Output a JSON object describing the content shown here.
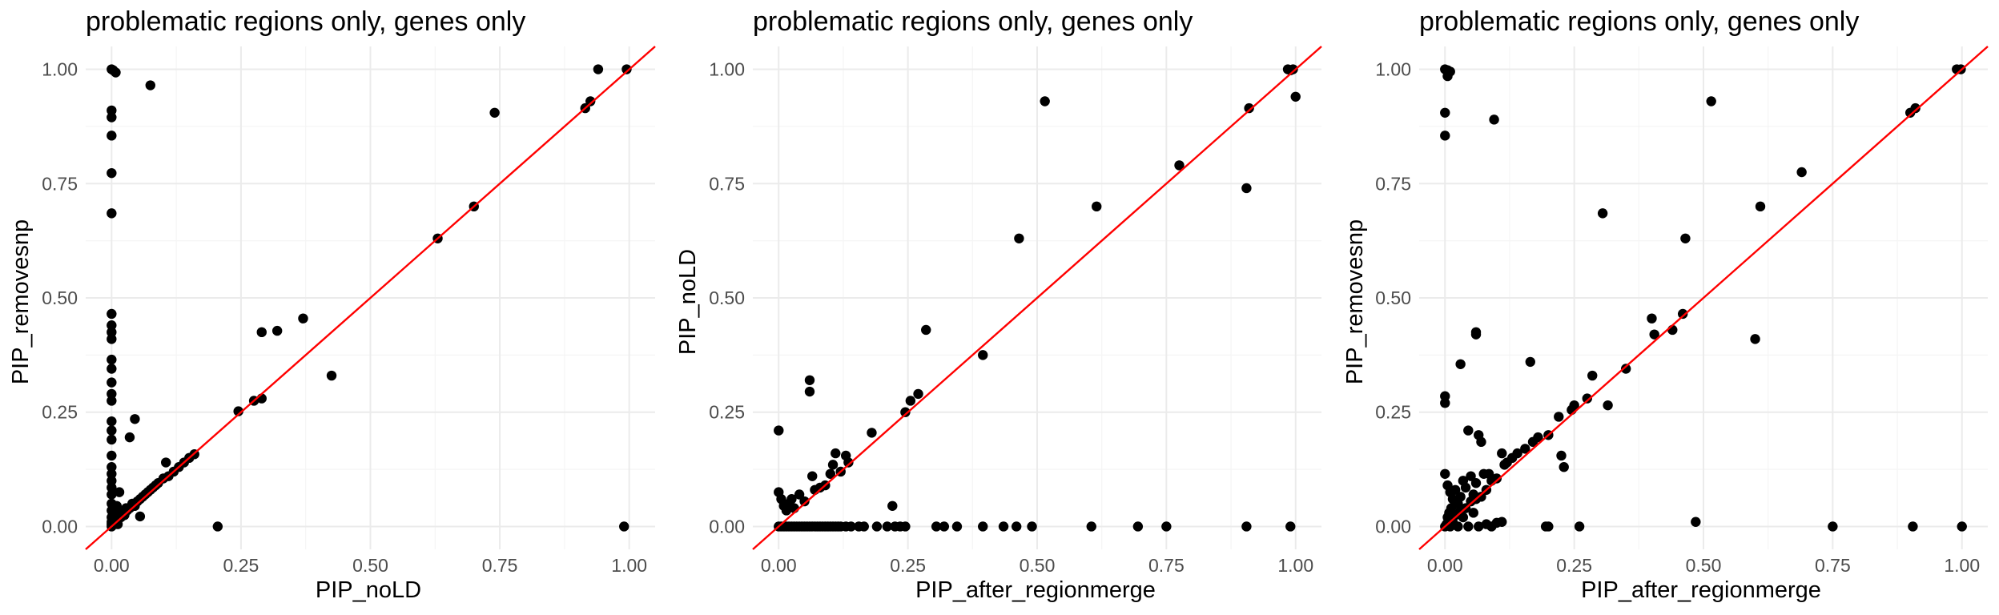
{
  "chart_data": [
    {
      "type": "scatter",
      "title": "problematic regions only, genes only",
      "xlabel": "PIP_noLD",
      "ylabel": "PIP_removesnp",
      "xlim": [
        -0.05,
        1.05
      ],
      "ylim": [
        -0.05,
        1.05
      ],
      "x_ticks": [
        "0.00",
        "0.25",
        "0.50",
        "0.75",
        "1.00"
      ],
      "y_ticks": [
        "0.00",
        "0.25",
        "0.50",
        "0.75",
        "1.00"
      ],
      "reference_line": {
        "slope": 1,
        "intercept": 0,
        "color": "#ff0000"
      },
      "points": [
        [
          0.0,
          1.0
        ],
        [
          0.003,
          0.998
        ],
        [
          0.008,
          0.993
        ],
        [
          0.075,
          0.965
        ],
        [
          0.0,
          0.91
        ],
        [
          0.0,
          0.895
        ],
        [
          0.0,
          0.855
        ],
        [
          0.0,
          0.773
        ],
        [
          0.0,
          0.685
        ],
        [
          0.0,
          0.465
        ],
        [
          0.0,
          0.44
        ],
        [
          0.0,
          0.425
        ],
        [
          0.0,
          0.41
        ],
        [
          0.0,
          0.365
        ],
        [
          0.0,
          0.345
        ],
        [
          0.0,
          0.315
        ],
        [
          0.0,
          0.29
        ],
        [
          0.0,
          0.275
        ],
        [
          0.0,
          0.23
        ],
        [
          0.0,
          0.21
        ],
        [
          0.0,
          0.19
        ],
        [
          0.0,
          0.155
        ],
        [
          0.0,
          0.13
        ],
        [
          0.0,
          0.115
        ],
        [
          0.0,
          0.1
        ],
        [
          0.0,
          0.085
        ],
        [
          0.0,
          0.07
        ],
        [
          0.0,
          0.05
        ],
        [
          0.0,
          0.035
        ],
        [
          0.0,
          0.02
        ],
        [
          0.0,
          0.01
        ],
        [
          0.0,
          0.005
        ],
        [
          0.0,
          0.0
        ],
        [
          0.005,
          0.03
        ],
        [
          0.008,
          0.015
        ],
        [
          0.01,
          0.045
        ],
        [
          0.012,
          0.005
        ],
        [
          0.015,
          0.075
        ],
        [
          0.018,
          0.02
        ],
        [
          0.02,
          0.03
        ],
        [
          0.025,
          0.025
        ],
        [
          0.028,
          0.04
        ],
        [
          0.03,
          0.035
        ],
        [
          0.035,
          0.04
        ],
        [
          0.04,
          0.05
        ],
        [
          0.045,
          0.045
        ],
        [
          0.05,
          0.055
        ],
        [
          0.055,
          0.06
        ],
        [
          0.06,
          0.065
        ],
        [
          0.065,
          0.07
        ],
        [
          0.07,
          0.075
        ],
        [
          0.075,
          0.08
        ],
        [
          0.08,
          0.085
        ],
        [
          0.085,
          0.09
        ],
        [
          0.09,
          0.095
        ],
        [
          0.1,
          0.105
        ],
        [
          0.11,
          0.11
        ],
        [
          0.12,
          0.12
        ],
        [
          0.13,
          0.13
        ],
        [
          0.14,
          0.14
        ],
        [
          0.15,
          0.15
        ],
        [
          0.16,
          0.158
        ],
        [
          0.035,
          0.195
        ],
        [
          0.045,
          0.235
        ],
        [
          0.055,
          0.022
        ],
        [
          0.105,
          0.14
        ],
        [
          0.205,
          0.0
        ],
        [
          0.245,
          0.252
        ],
        [
          0.275,
          0.275
        ],
        [
          0.29,
          0.28
        ],
        [
          0.29,
          0.425
        ],
        [
          0.32,
          0.428
        ],
        [
          0.37,
          0.455
        ],
        [
          0.425,
          0.33
        ],
        [
          0.63,
          0.63
        ],
        [
          0.7,
          0.7
        ],
        [
          0.74,
          0.905
        ],
        [
          0.915,
          0.915
        ],
        [
          0.925,
          0.93
        ],
        [
          0.94,
          1.0
        ],
        [
          0.995,
          1.0
        ],
        [
          0.99,
          0.0
        ]
      ]
    },
    {
      "type": "scatter",
      "title": "problematic regions only, genes only",
      "xlabel": "PIP_after_regionmerge",
      "ylabel": "PIP_noLD",
      "xlim": [
        -0.05,
        1.05
      ],
      "ylim": [
        -0.05,
        1.05
      ],
      "x_ticks": [
        "0.00",
        "0.25",
        "0.50",
        "0.75",
        "1.00"
      ],
      "y_ticks": [
        "0.00",
        "0.25",
        "0.50",
        "0.75",
        "1.00"
      ],
      "reference_line": {
        "slope": 1,
        "intercept": 0,
        "color": "#ff0000"
      },
      "points": [
        [
          0.0,
          0.21
        ],
        [
          0.0,
          0.075
        ],
        [
          0.005,
          0.06
        ],
        [
          0.01,
          0.045
        ],
        [
          0.015,
          0.035
        ],
        [
          0.02,
          0.05
        ],
        [
          0.025,
          0.06
        ],
        [
          0.03,
          0.04
        ],
        [
          0.04,
          0.07
        ],
        [
          0.05,
          0.055
        ],
        [
          0.06,
          0.32
        ],
        [
          0.06,
          0.295
        ],
        [
          0.065,
          0.11
        ],
        [
          0.07,
          0.08
        ],
        [
          0.08,
          0.085
        ],
        [
          0.09,
          0.09
        ],
        [
          0.1,
          0.115
        ],
        [
          0.105,
          0.135
        ],
        [
          0.11,
          0.16
        ],
        [
          0.12,
          0.12
        ],
        [
          0.13,
          0.155
        ],
        [
          0.135,
          0.14
        ],
        [
          0.18,
          0.205
        ],
        [
          0.22,
          0.045
        ],
        [
          0.245,
          0.25
        ],
        [
          0.255,
          0.275
        ],
        [
          0.27,
          0.29
        ],
        [
          0.285,
          0.43
        ],
        [
          0.395,
          0.375
        ],
        [
          0.465,
          0.63
        ],
        [
          0.515,
          0.93
        ],
        [
          0.615,
          0.7
        ],
        [
          0.775,
          0.79
        ],
        [
          0.905,
          0.74
        ],
        [
          0.91,
          0.915
        ],
        [
          0.985,
          1.0
        ],
        [
          0.99,
          0.998
        ],
        [
          0.995,
          1.0
        ],
        [
          1.0,
          0.94
        ],
        [
          0.0,
          0.0
        ],
        [
          0.005,
          0.0
        ],
        [
          0.01,
          0.0
        ],
        [
          0.015,
          0.0
        ],
        [
          0.02,
          0.0
        ],
        [
          0.025,
          0.0
        ],
        [
          0.03,
          0.0
        ],
        [
          0.035,
          0.0
        ],
        [
          0.04,
          0.0
        ],
        [
          0.045,
          0.0
        ],
        [
          0.05,
          0.0
        ],
        [
          0.055,
          0.0
        ],
        [
          0.06,
          0.0
        ],
        [
          0.065,
          0.0
        ],
        [
          0.07,
          0.0
        ],
        [
          0.075,
          0.0
        ],
        [
          0.08,
          0.0
        ],
        [
          0.085,
          0.0
        ],
        [
          0.09,
          0.0
        ],
        [
          0.095,
          0.0
        ],
        [
          0.1,
          0.0
        ],
        [
          0.105,
          0.0
        ],
        [
          0.11,
          0.0
        ],
        [
          0.115,
          0.0
        ],
        [
          0.12,
          0.0
        ],
        [
          0.13,
          0.0
        ],
        [
          0.14,
          0.0
        ],
        [
          0.155,
          0.0
        ],
        [
          0.165,
          0.0
        ],
        [
          0.19,
          0.0
        ],
        [
          0.21,
          0.0
        ],
        [
          0.225,
          0.0
        ],
        [
          0.235,
          0.0
        ],
        [
          0.245,
          0.0
        ],
        [
          0.305,
          0.0
        ],
        [
          0.32,
          0.0
        ],
        [
          0.345,
          0.0
        ],
        [
          0.395,
          0.0
        ],
        [
          0.435,
          0.0
        ],
        [
          0.46,
          0.0
        ],
        [
          0.49,
          0.0
        ],
        [
          0.605,
          0.0
        ],
        [
          0.695,
          0.0
        ],
        [
          0.75,
          0.0
        ],
        [
          0.905,
          0.0
        ],
        [
          0.99,
          0.0
        ]
      ]
    },
    {
      "type": "scatter",
      "title": "problematic regions only, genes only",
      "xlabel": "PIP_after_regionmerge",
      "ylabel": "PIP_removesnp",
      "xlim": [
        -0.05,
        1.05
      ],
      "ylim": [
        -0.05,
        1.05
      ],
      "x_ticks": [
        "0.00",
        "0.25",
        "0.50",
        "0.75",
        "1.00"
      ],
      "y_ticks": [
        "0.00",
        "0.25",
        "0.50",
        "0.75",
        "1.00"
      ],
      "reference_line": {
        "slope": 1,
        "intercept": 0,
        "color": "#ff0000"
      },
      "points": [
        [
          0.0,
          1.0
        ],
        [
          0.005,
          0.998
        ],
        [
          0.01,
          0.995
        ],
        [
          0.005,
          0.985
        ],
        [
          0.0,
          0.905
        ],
        [
          0.0,
          0.855
        ],
        [
          0.095,
          0.89
        ],
        [
          0.0,
          0.285
        ],
        [
          0.0,
          0.27
        ],
        [
          0.03,
          0.355
        ],
        [
          0.06,
          0.425
        ],
        [
          0.06,
          0.42
        ],
        [
          0.045,
          0.21
        ],
        [
          0.0,
          0.115
        ],
        [
          0.005,
          0.09
        ],
        [
          0.01,
          0.075
        ],
        [
          0.015,
          0.06
        ],
        [
          0.02,
          0.08
        ],
        [
          0.025,
          0.05
        ],
        [
          0.03,
          0.065
        ],
        [
          0.035,
          0.1
        ],
        [
          0.04,
          0.085
        ],
        [
          0.05,
          0.11
        ],
        [
          0.055,
          0.07
        ],
        [
          0.06,
          0.095
        ],
        [
          0.065,
          0.2
        ],
        [
          0.07,
          0.185
        ],
        [
          0.075,
          0.115
        ],
        [
          0.08,
          0.08
        ],
        [
          0.085,
          0.115
        ],
        [
          0.09,
          0.1
        ],
        [
          0.1,
          0.105
        ],
        [
          0.11,
          0.16
        ],
        [
          0.115,
          0.135
        ],
        [
          0.12,
          0.14
        ],
        [
          0.13,
          0.15
        ],
        [
          0.14,
          0.16
        ],
        [
          0.155,
          0.17
        ],
        [
          0.165,
          0.36
        ],
        [
          0.17,
          0.185
        ],
        [
          0.18,
          0.195
        ],
        [
          0.2,
          0.2
        ],
        [
          0.22,
          0.24
        ],
        [
          0.225,
          0.155
        ],
        [
          0.23,
          0.13
        ],
        [
          0.245,
          0.255
        ],
        [
          0.25,
          0.265
        ],
        [
          0.275,
          0.28
        ],
        [
          0.285,
          0.33
        ],
        [
          0.305,
          0.685
        ],
        [
          0.315,
          0.265
        ],
        [
          0.35,
          0.345
        ],
        [
          0.4,
          0.455
        ],
        [
          0.405,
          0.42
        ],
        [
          0.44,
          0.43
        ],
        [
          0.46,
          0.465
        ],
        [
          0.465,
          0.63
        ],
        [
          0.515,
          0.93
        ],
        [
          0.6,
          0.41
        ],
        [
          0.61,
          0.7
        ],
        [
          0.69,
          0.775
        ],
        [
          0.9,
          0.905
        ],
        [
          0.91,
          0.915
        ],
        [
          0.99,
          1.0
        ],
        [
          0.998,
          1.0
        ],
        [
          0.0,
          0.0
        ],
        [
          0.003,
          0.005
        ],
        [
          0.005,
          0.02
        ],
        [
          0.008,
          0.03
        ],
        [
          0.01,
          0.0
        ],
        [
          0.012,
          0.04
        ],
        [
          0.015,
          0.01
        ],
        [
          0.02,
          0.025
        ],
        [
          0.025,
          0.0
        ],
        [
          0.03,
          0.035
        ],
        [
          0.035,
          0.02
        ],
        [
          0.04,
          0.04
        ],
        [
          0.045,
          0.0
        ],
        [
          0.05,
          0.055
        ],
        [
          0.055,
          0.03
        ],
        [
          0.06,
          0.06
        ],
        [
          0.065,
          0.0
        ],
        [
          0.07,
          0.065
        ],
        [
          0.08,
          0.005
        ],
        [
          0.09,
          0.0
        ],
        [
          0.1,
          0.008
        ],
        [
          0.11,
          0.01
        ],
        [
          0.195,
          0.0
        ],
        [
          0.2,
          0.0
        ],
        [
          0.26,
          0.0
        ],
        [
          0.485,
          0.01
        ],
        [
          0.75,
          0.0
        ],
        [
          0.905,
          0.0
        ],
        [
          1.0,
          0.0
        ]
      ]
    }
  ]
}
